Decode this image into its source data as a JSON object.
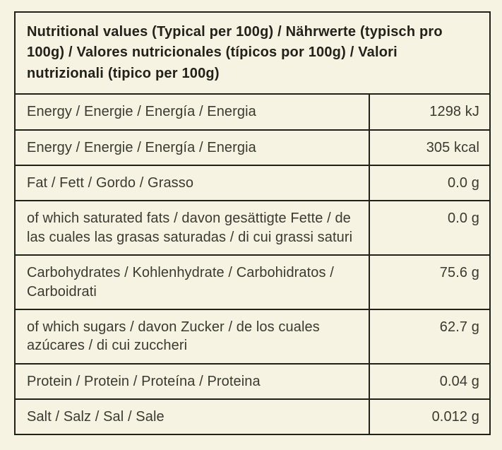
{
  "page": {
    "background_color": "#f7f3e2",
    "border_color": "#21211a",
    "text_color": "#3a3a30"
  },
  "table": {
    "header": "Nutritional values (Typical per 100g) / Nährwerte (typisch pro 100g) / Valores nutricionales (típicos por 100g) / Valori nutrizionali (tipico per 100g)",
    "rows": [
      {
        "label": "Energy / Energie / Energía / Energia",
        "value": "1298 kJ"
      },
      {
        "label": "Energy / Energie / Energía / Energia",
        "value": "305 kcal"
      },
      {
        "label": "Fat / Fett / Gordo / Grasso",
        "value": "0.0 g"
      },
      {
        "label": "of which saturated fats / davon gesättigte Fette / de las cuales las grasas saturadas / di cui grassi saturi",
        "value": "0.0 g"
      },
      {
        "label": "Carbohydrates / Kohlenhydrate / Carbohidratos / Carboidrati",
        "value": "75.6 g"
      },
      {
        "label": "of which sugars / davon Zucker / de los cuales azúcares / di cui zuccheri",
        "value": "62.7 g"
      },
      {
        "label": "Protein / Protein / Proteína / Proteina",
        "value": "0.04 g"
      },
      {
        "label": "Salt / Salz / Sal / Sale",
        "value": "0.012 g"
      }
    ]
  }
}
